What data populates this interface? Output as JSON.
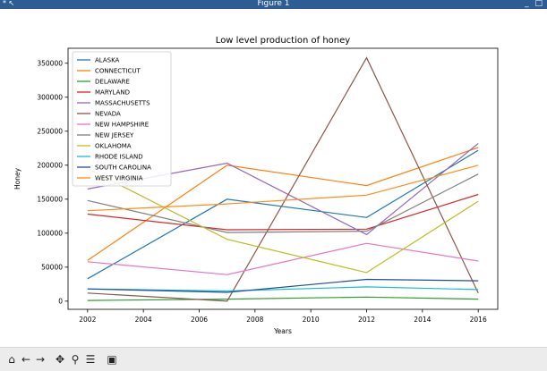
{
  "window": {
    "title": "Figure 1",
    "left_controls": "* ↖",
    "right_controls": "_ □"
  },
  "toolbar": {
    "buttons": [
      {
        "name": "home-icon",
        "glyph": "⌂"
      },
      {
        "name": "back-icon",
        "glyph": "←"
      },
      {
        "name": "forward-icon",
        "glyph": "→"
      },
      {
        "name": "pan-icon",
        "glyph": "✥"
      },
      {
        "name": "zoom-icon",
        "glyph": "⚲"
      },
      {
        "name": "subplots-icon",
        "glyph": "☰"
      },
      {
        "name": "save-icon",
        "glyph": "▣"
      }
    ]
  },
  "chart_data": {
    "type": "line",
    "title": "Low level production of honey",
    "xlabel": "Years",
    "ylabel": "Honey",
    "x": [
      2002,
      2007,
      2012,
      2016
    ],
    "xticks": [
      2002,
      2004,
      2006,
      2008,
      2010,
      2012,
      2014,
      2016
    ],
    "yticks": [
      0,
      50000,
      100000,
      150000,
      200000,
      250000,
      300000,
      350000
    ],
    "ylim": [
      -12000,
      372000
    ],
    "xlim": [
      2001.3,
      2016.7
    ],
    "grid": false,
    "legend": "top-left",
    "series": [
      {
        "name": "ALASKA",
        "color": "#1f77b4",
        "values": [
          33000,
          150000,
          123000,
          222000
        ]
      },
      {
        "name": "CONNECTICUT",
        "color": "#ff7f0e",
        "values": [
          60000,
          200000,
          170000,
          226000
        ]
      },
      {
        "name": "DELAWARE",
        "color": "#2ca02c",
        "values": [
          1000,
          3000,
          6000,
          3000
        ]
      },
      {
        "name": "MARYLAND",
        "color": "#d62728",
        "values": [
          128000,
          105000,
          106000,
          157000
        ]
      },
      {
        "name": "MASSACHUSETTS",
        "color": "#9467bd",
        "values": [
          165000,
          203000,
          98000,
          232000
        ]
      },
      {
        "name": "NEVADA",
        "color": "#8c564b",
        "values": [
          12000,
          0,
          358000,
          12000
        ]
      },
      {
        "name": "NEW HAMPSHIRE",
        "color": "#e377c2",
        "values": [
          58000,
          39000,
          85000,
          59000
        ]
      },
      {
        "name": "NEW JERSEY",
        "color": "#7f7f7f",
        "values": [
          148000,
          101000,
          103000,
          187000
        ]
      },
      {
        "name": "OKLAHOMA",
        "color": "#bcbd22",
        "values": [
          195000,
          91000,
          42000,
          147000
        ]
      },
      {
        "name": "RHODE ISLAND",
        "color": "#17becf",
        "values": [
          18000,
          15000,
          21000,
          17000
        ]
      },
      {
        "name": "SOUTH CAROLINA",
        "color": "#1f4e99",
        "values": [
          18000,
          13000,
          32000,
          30000
        ]
      },
      {
        "name": "WEST VIRGINIA",
        "color": "#ff8c1a",
        "values": [
          133000,
          143000,
          156000,
          200000
        ]
      }
    ]
  }
}
